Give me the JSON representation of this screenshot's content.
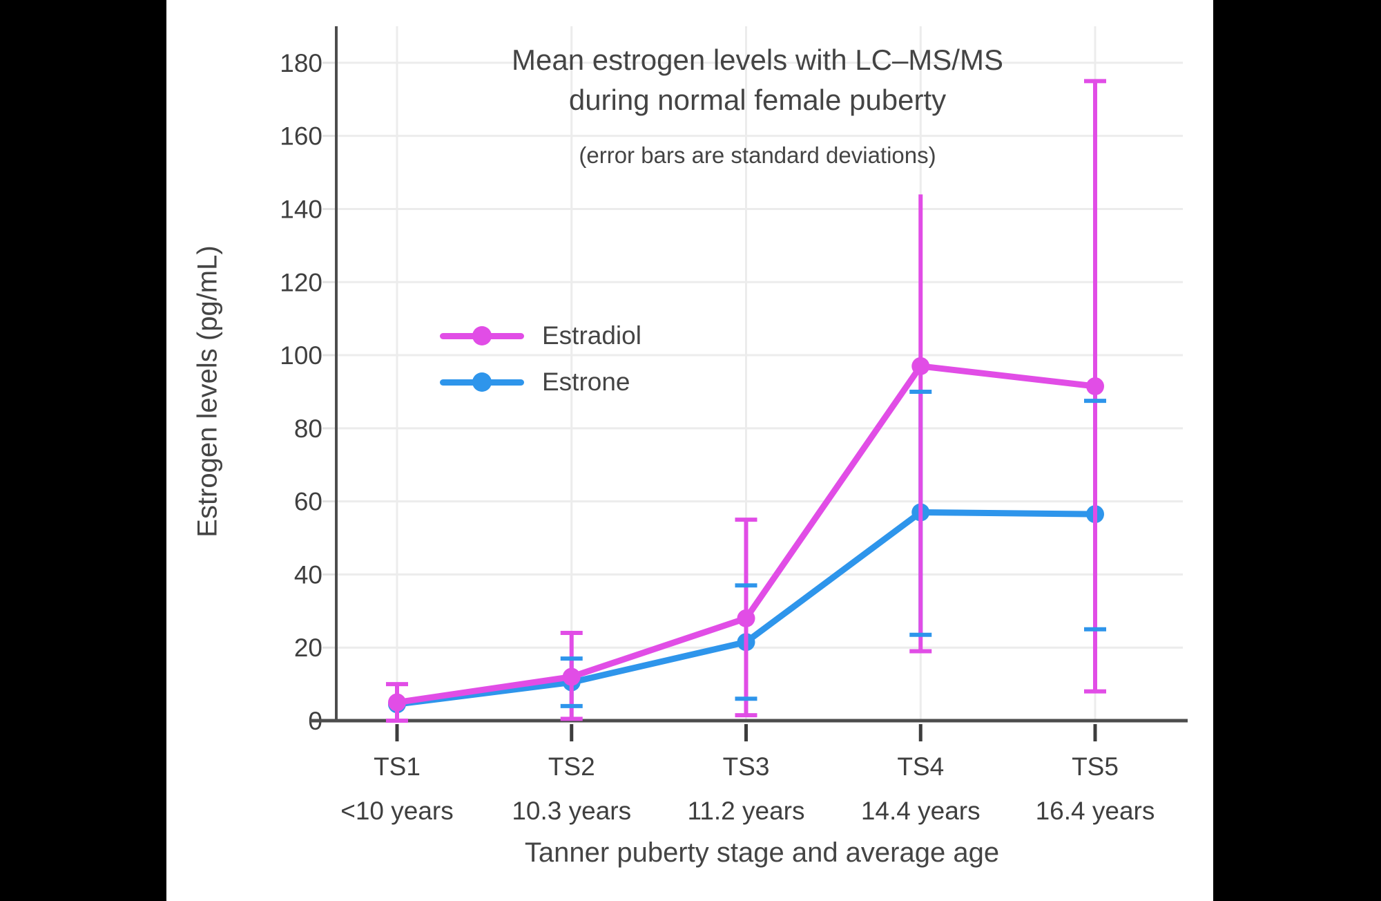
{
  "page": {
    "letterbox_color": "#000000",
    "canvas_color": "#FFFFFF",
    "text_color": "#444444",
    "grid_color": "#ECECEC",
    "axis_color": "#4D4D4D"
  },
  "chart_data": {
    "type": "line",
    "title_line1": "Mean estrogen levels with LC–MS/MS",
    "title_line2": "during normal female puberty",
    "subtitle": "(error bars are standard deviations)",
    "xlabel": "Tanner puberty stage and average age",
    "ylabel": "Estrogen levels (pg/mL)",
    "categories": [
      "TS1",
      "TS2",
      "TS3",
      "TS4",
      "TS5"
    ],
    "category_ages": [
      "<10 years",
      "10.3 years",
      "11.2 years",
      "14.4 years",
      "16.4 years"
    ],
    "y_ticks": [
      0,
      20,
      40,
      60,
      80,
      100,
      120,
      140,
      160,
      180
    ],
    "ylim": [
      0,
      190
    ],
    "grid": true,
    "legend_position": "inside-upper-left",
    "series": [
      {
        "name": "Estradiol",
        "color": "#E14DE6",
        "values": [
          5,
          12,
          28,
          97,
          91.5
        ],
        "error_low": [
          0,
          0.5,
          1.5,
          19,
          8
        ],
        "error_high": [
          10,
          24,
          55,
          144,
          175
        ],
        "error_high_cap": [
          true,
          true,
          true,
          false,
          true
        ],
        "error_low_cap": [
          true,
          true,
          true,
          true,
          true
        ]
      },
      {
        "name": "Estrone",
        "color": "#2E95EB",
        "values": [
          4.5,
          10.5,
          21.5,
          57,
          56.5
        ],
        "error_low": [
          null,
          4,
          6,
          23.5,
          25
        ],
        "error_high": [
          null,
          17,
          37,
          90,
          87.5
        ],
        "error_high_cap": [
          false,
          true,
          true,
          true,
          true
        ],
        "error_low_cap": [
          false,
          true,
          true,
          true,
          true
        ]
      }
    ]
  }
}
